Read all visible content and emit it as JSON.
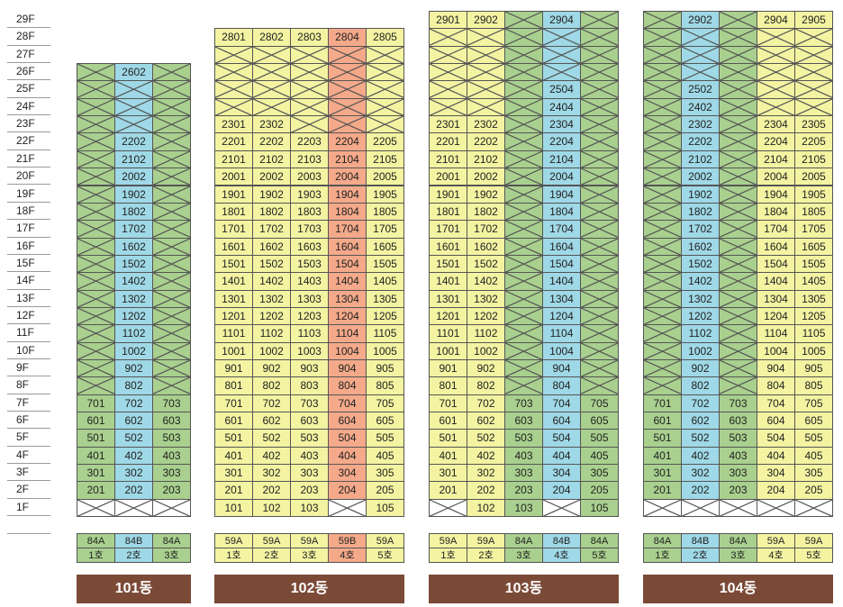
{
  "floors": [
    "29F",
    "28F",
    "27F",
    "26F",
    "25F",
    "24F",
    "23F",
    "22F",
    "21F",
    "20F",
    "19F",
    "18F",
    "17F",
    "16F",
    "15F",
    "14F",
    "13F",
    "12F",
    "11F",
    "10F",
    "9F",
    "8F",
    "7F",
    "6F",
    "5F",
    "4F",
    "3F",
    "2F",
    "1F"
  ],
  "colors": {
    "84A": "#a9d08e",
    "84B": "#9fd8e6",
    "59A": "#f3f3a2",
    "59B": "#f4a98a",
    "building_bar": "#7b4a37"
  },
  "buildings": [
    {
      "name": "101동",
      "cols": [
        {
          "type": "84A",
          "ho": "1호",
          "units": {
            "7": "701",
            "6": "601",
            "5": "501",
            "4": "401",
            "3": "301",
            "2": "201"
          },
          "x_floors": [
            26,
            25,
            24,
            23,
            22,
            21,
            20,
            19,
            18,
            17,
            16,
            15,
            14,
            13,
            12,
            11,
            10,
            9,
            8,
            1
          ],
          "top": 26
        },
        {
          "type": "84B",
          "ho": "2호",
          "units": {
            "26": "2602",
            "22": "2202",
            "21": "2102",
            "20": "2002",
            "19": "1902",
            "18": "1802",
            "17": "1702",
            "16": "1602",
            "15": "1502",
            "14": "1402",
            "13": "1302",
            "12": "1202",
            "11": "1102",
            "10": "1002",
            "9": "902",
            "8": "802",
            "7": "702",
            "6": "602",
            "5": "502",
            "4": "402",
            "3": "302",
            "2": "202"
          },
          "x_floors": [
            25,
            24,
            23,
            1
          ],
          "top": 26
        },
        {
          "type": "84A",
          "ho": "3호",
          "units": {
            "7": "703",
            "6": "603",
            "5": "503",
            "4": "403",
            "3": "303",
            "2": "203"
          },
          "x_floors": [
            26,
            25,
            24,
            23,
            22,
            21,
            20,
            19,
            18,
            17,
            16,
            15,
            14,
            13,
            12,
            11,
            10,
            9,
            8,
            1
          ],
          "top": 26
        }
      ]
    },
    {
      "name": "102동",
      "cols": [
        {
          "type": "59A",
          "ho": "1호",
          "units": {
            "28": "2801",
            "23": "2301",
            "22": "2201",
            "21": "2101",
            "20": "2001",
            "19": "1901",
            "18": "1801",
            "17": "1701",
            "16": "1601",
            "15": "1501",
            "14": "1401",
            "13": "1301",
            "12": "1201",
            "11": "1101",
            "10": "1001",
            "9": "901",
            "8": "801",
            "7": "701",
            "6": "601",
            "5": "501",
            "4": "401",
            "3": "301",
            "2": "201",
            "1": "101"
          },
          "x_floors": [
            27,
            26,
            25,
            24
          ],
          "top": 28
        },
        {
          "type": "59A",
          "ho": "2호",
          "units": {
            "28": "2802",
            "23": "2302",
            "22": "2202",
            "21": "2102",
            "20": "2002",
            "19": "1902",
            "18": "1802",
            "17": "1702",
            "16": "1602",
            "15": "1502",
            "14": "1402",
            "13": "1302",
            "12": "1202",
            "11": "1102",
            "10": "1002",
            "9": "902",
            "8": "802",
            "7": "702",
            "6": "602",
            "5": "502",
            "4": "402",
            "3": "302",
            "2": "202",
            "1": "102"
          },
          "x_floors": [
            27,
            26,
            25,
            24
          ],
          "top": 28
        },
        {
          "type": "59A",
          "ho": "3호",
          "units": {
            "28": "2803",
            "22": "2203",
            "21": "2103",
            "20": "2003",
            "19": "1903",
            "18": "1803",
            "17": "1703",
            "16": "1603",
            "15": "1503",
            "14": "1403",
            "13": "1303",
            "12": "1203",
            "11": "1103",
            "10": "1003",
            "9": "903",
            "8": "803",
            "7": "703",
            "6": "603",
            "5": "503",
            "4": "403",
            "3": "303",
            "2": "203",
            "1": "103"
          },
          "x_floors": [
            27,
            26,
            25,
            24,
            23
          ],
          "top": 28
        },
        {
          "type": "59B",
          "ho": "4호",
          "units": {
            "28": "2804",
            "22": "2204",
            "21": "2104",
            "20": "2004",
            "19": "1904",
            "18": "1804",
            "17": "1704",
            "16": "1604",
            "15": "1504",
            "14": "1404",
            "13": "1304",
            "12": "1204",
            "11": "1104",
            "10": "1004",
            "9": "904",
            "8": "804",
            "7": "704",
            "6": "604",
            "5": "504",
            "4": "404",
            "3": "304",
            "2": "204"
          },
          "x_floors": [
            27,
            26,
            25,
            24,
            23,
            1
          ],
          "top": 28
        },
        {
          "type": "59A",
          "ho": "5호",
          "units": {
            "28": "2805",
            "22": "2205",
            "21": "2105",
            "20": "2005",
            "19": "1905",
            "18": "1805",
            "17": "1705",
            "16": "1605",
            "15": "1505",
            "14": "1405",
            "13": "1305",
            "12": "1205",
            "11": "1105",
            "10": "1005",
            "9": "905",
            "8": "805",
            "7": "705",
            "6": "605",
            "5": "505",
            "4": "405",
            "3": "305",
            "2": "205",
            "1": "105"
          },
          "x_floors": [
            27,
            26,
            25,
            24,
            23
          ],
          "top": 28
        }
      ]
    },
    {
      "name": "103동",
      "cols": [
        {
          "type": "59A",
          "ho": "1호",
          "units": {
            "29": "2901",
            "23": "2301",
            "22": "2201",
            "21": "2101",
            "20": "2001",
            "19": "1901",
            "18": "1801",
            "17": "1701",
            "16": "1601",
            "15": "1501",
            "14": "1401",
            "13": "1301",
            "12": "1201",
            "11": "1101",
            "10": "1001",
            "9": "901",
            "8": "801",
            "7": "701",
            "6": "601",
            "5": "501",
            "4": "401",
            "3": "301",
            "2": "201"
          },
          "x_floors": [
            28,
            27,
            26,
            25,
            24,
            1
          ],
          "top": 29
        },
        {
          "type": "59A",
          "ho": "2호",
          "units": {
            "29": "2902",
            "23": "2302",
            "22": "2202",
            "21": "2102",
            "20": "2002",
            "19": "1902",
            "18": "1802",
            "17": "1702",
            "16": "1602",
            "15": "1502",
            "14": "1402",
            "13": "1302",
            "12": "1202",
            "11": "1102",
            "10": "1002",
            "9": "902",
            "8": "802",
            "7": "702",
            "6": "602",
            "5": "502",
            "4": "402",
            "3": "302",
            "2": "202",
            "1": "102"
          },
          "x_floors": [
            28,
            27,
            26,
            25,
            24
          ],
          "top": 29
        },
        {
          "type": "84A",
          "ho": "3호",
          "units": {
            "7": "703",
            "6": "603",
            "5": "503",
            "4": "403",
            "3": "303",
            "2": "203",
            "1": "103"
          },
          "x_floors": [
            29,
            28,
            27,
            26,
            25,
            24,
            23,
            22,
            21,
            20,
            19,
            18,
            17,
            16,
            15,
            14,
            13,
            12,
            11,
            10,
            9,
            8
          ],
          "top": 29
        },
        {
          "type": "84B",
          "ho": "4호",
          "units": {
            "29": "2904",
            "25": "2504",
            "24": "2404",
            "23": "2304",
            "22": "2204",
            "21": "2104",
            "20": "2004",
            "19": "1904",
            "18": "1804",
            "17": "1704",
            "16": "1604",
            "15": "1504",
            "14": "1404",
            "13": "1304",
            "12": "1204",
            "11": "1104",
            "10": "1004",
            "9": "904",
            "8": "804",
            "7": "704",
            "6": "604",
            "5": "504",
            "4": "404",
            "3": "304",
            "2": "204"
          },
          "x_floors": [
            28,
            27,
            26,
            1
          ],
          "top": 29
        },
        {
          "type": "84A",
          "ho": "5호",
          "units": {
            "7": "705",
            "6": "605",
            "5": "505",
            "4": "405",
            "3": "305",
            "2": "205",
            "1": "105"
          },
          "x_floors": [
            29,
            28,
            27,
            26,
            25,
            24,
            23,
            22,
            21,
            20,
            19,
            18,
            17,
            16,
            15,
            14,
            13,
            12,
            11,
            10,
            9,
            8
          ],
          "top": 29
        }
      ]
    },
    {
      "name": "104동",
      "cols": [
        {
          "type": "84A",
          "ho": "1호",
          "units": {
            "7": "701",
            "6": "601",
            "5": "501",
            "4": "401",
            "3": "301",
            "2": "201"
          },
          "x_floors": [
            29,
            28,
            27,
            26,
            25,
            24,
            23,
            22,
            21,
            20,
            19,
            18,
            17,
            16,
            15,
            14,
            13,
            12,
            11,
            10,
            9,
            8,
            1
          ],
          "top": 29
        },
        {
          "type": "84B",
          "ho": "2호",
          "units": {
            "29": "2902",
            "25": "2502",
            "24": "2402",
            "23": "2302",
            "22": "2202",
            "21": "2102",
            "20": "2002",
            "19": "1902",
            "18": "1802",
            "17": "1702",
            "16": "1602",
            "15": "1502",
            "14": "1402",
            "13": "1302",
            "12": "1202",
            "11": "1102",
            "10": "1002",
            "9": "902",
            "8": "802",
            "7": "702",
            "6": "602",
            "5": "502",
            "4": "402",
            "3": "302",
            "2": "202"
          },
          "x_floors": [
            28,
            27,
            26,
            1
          ],
          "top": 29
        },
        {
          "type": "84A",
          "ho": "3호",
          "units": {
            "7": "703",
            "6": "603",
            "5": "503",
            "4": "403",
            "3": "303",
            "2": "203"
          },
          "x_floors": [
            29,
            28,
            27,
            26,
            25,
            24,
            23,
            22,
            21,
            20,
            19,
            18,
            17,
            16,
            15,
            14,
            13,
            12,
            11,
            10,
            9,
            8,
            1
          ],
          "top": 29
        },
        {
          "type": "59A",
          "ho": "4호",
          "units": {
            "29": "2904",
            "23": "2304",
            "22": "2204",
            "21": "2104",
            "20": "2004",
            "19": "1904",
            "18": "1804",
            "17": "1704",
            "16": "1604",
            "15": "1504",
            "14": "1404",
            "13": "1304",
            "12": "1204",
            "11": "1104",
            "10": "1004",
            "9": "904",
            "8": "804",
            "7": "704",
            "6": "604",
            "5": "504",
            "4": "404",
            "3": "304",
            "2": "204"
          },
          "x_floors": [
            28,
            27,
            26,
            25,
            24,
            1
          ],
          "top": 29
        },
        {
          "type": "59A",
          "ho": "5호",
          "units": {
            "29": "2905",
            "23": "2305",
            "22": "2205",
            "21": "2105",
            "20": "2005",
            "19": "1905",
            "18": "1805",
            "17": "1705",
            "16": "1605",
            "15": "1505",
            "14": "1405",
            "13": "1305",
            "12": "1205",
            "11": "1105",
            "10": "1005",
            "9": "905",
            "8": "805",
            "7": "705",
            "6": "605",
            "5": "505",
            "4": "405",
            "3": "305",
            "2": "205"
          },
          "x_floors": [
            28,
            27,
            26,
            25,
            24,
            1
          ],
          "top": 29
        }
      ]
    }
  ]
}
